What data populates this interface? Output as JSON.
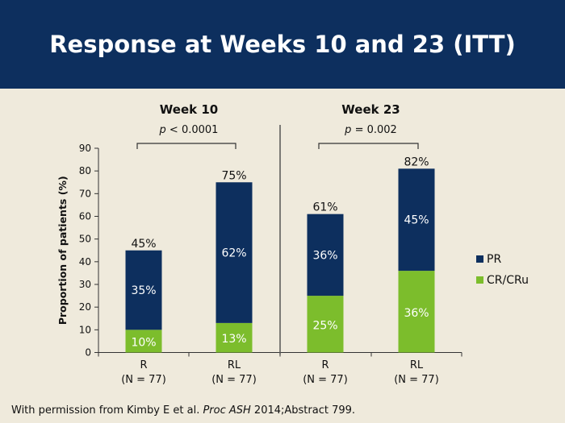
{
  "slide": {
    "title": "Response at Weeks 10 and 23 (ITT)",
    "footnote": {
      "prefix": "With permission from Kimby E et al. ",
      "journal": "Proc ASH",
      "suffix": " 2014;Abstract 799."
    }
  },
  "colors": {
    "header_bg": "#0d2f5e",
    "background": "#efeadc",
    "pr": "#0d2f5e",
    "cr": "#7cbd2c"
  },
  "chart_data": {
    "type": "bar",
    "stacked": true,
    "ylabel": "Proportion of patients (%)",
    "ylim": [
      0,
      90
    ],
    "yticks": [
      0,
      10,
      20,
      30,
      40,
      50,
      60,
      70,
      80,
      90
    ],
    "groups": [
      {
        "name": "Week 10",
        "p_prefix": "p",
        "p_text": " < 0.0001"
      },
      {
        "name": "Week 23",
        "p_prefix": "p",
        "p_text": " = 0.002"
      }
    ],
    "categories": [
      {
        "label": "R",
        "n": "(N = 77)",
        "group": 0
      },
      {
        "label": "RL",
        "n": "(N = 77)",
        "group": 0
      },
      {
        "label": "R",
        "n": "(N = 77)",
        "group": 1
      },
      {
        "label": "RL",
        "n": "(N = 77)",
        "group": 1
      }
    ],
    "series": [
      {
        "name": "CR/CRu",
        "color": "#7cbd2c",
        "values": [
          10,
          13,
          25,
          36
        ],
        "labels": [
          "10%",
          "13%",
          "25%",
          "36%"
        ]
      },
      {
        "name": "PR",
        "color": "#0d2f5e",
        "values": [
          35,
          62,
          36,
          45
        ],
        "labels": [
          "35%",
          "62%",
          "36%",
          "45%"
        ]
      }
    ],
    "totals": {
      "values": [
        45,
        75,
        61,
        82
      ],
      "labels": [
        "45%",
        "75%",
        "61%",
        "82%"
      ]
    },
    "legend": {
      "placement": "right",
      "order": [
        "PR",
        "CR/CRu"
      ]
    }
  }
}
